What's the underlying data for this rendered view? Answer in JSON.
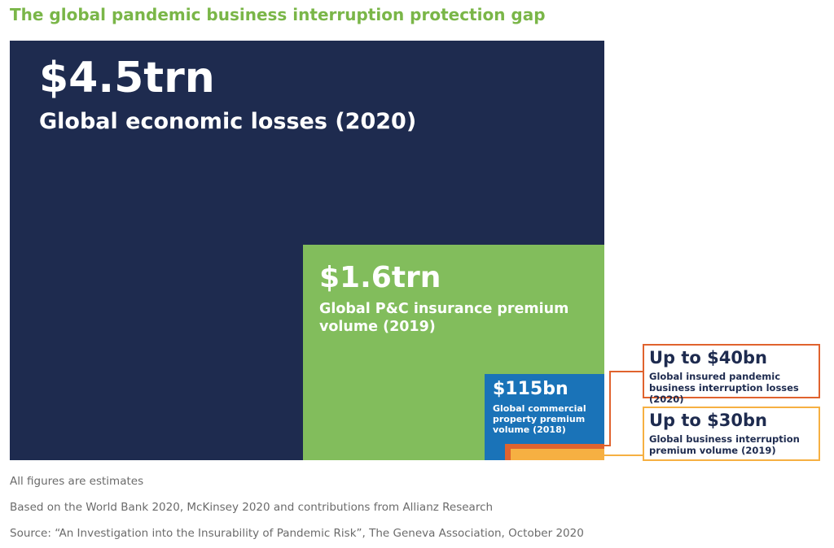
{
  "title": "The global pandemic business interruption protection gap",
  "colors": {
    "title": "#7ab648",
    "economic_losses": "#1e2b4f",
    "pc_premium": "#82bd5c",
    "commercial_property": "#1a73b8",
    "insured_losses": "#e0632e",
    "bi_premium": "#f6b042"
  },
  "chart_data": {
    "type": "nested-area",
    "title": "The global pandemic business interruption protection gap",
    "items": [
      {
        "id": "economic_losses",
        "value_usd_bn": 4500,
        "value_label": "$4.5trn",
        "label": "Global economic losses (2020)"
      },
      {
        "id": "pc_premium",
        "value_usd_bn": 1600,
        "value_label": "$1.6trn",
        "label": "Global P&C insurance premium volume (2019)"
      },
      {
        "id": "commercial_property",
        "value_usd_bn": 115,
        "value_label": "$115bn",
        "label": "Global commercial property premium volume (2018)"
      },
      {
        "id": "insured_losses",
        "value_usd_bn": 40,
        "value_label": "Up to $40bn",
        "label": "Global insured pandemic business interruption losses (2020)"
      },
      {
        "id": "bi_premium",
        "value_usd_bn": 30,
        "value_label": "Up to $30bn",
        "label": "Global business interruption premium volume (2019)"
      }
    ]
  },
  "notes": {
    "estimates": "All figures are estimates",
    "based_on": "Based on the World Bank 2020, McKinsey 2020 and contributions from Allianz Research",
    "source": "Source: “An Investigation into the Insurability of Pandemic Risk”, The Geneva Association, October 2020"
  }
}
